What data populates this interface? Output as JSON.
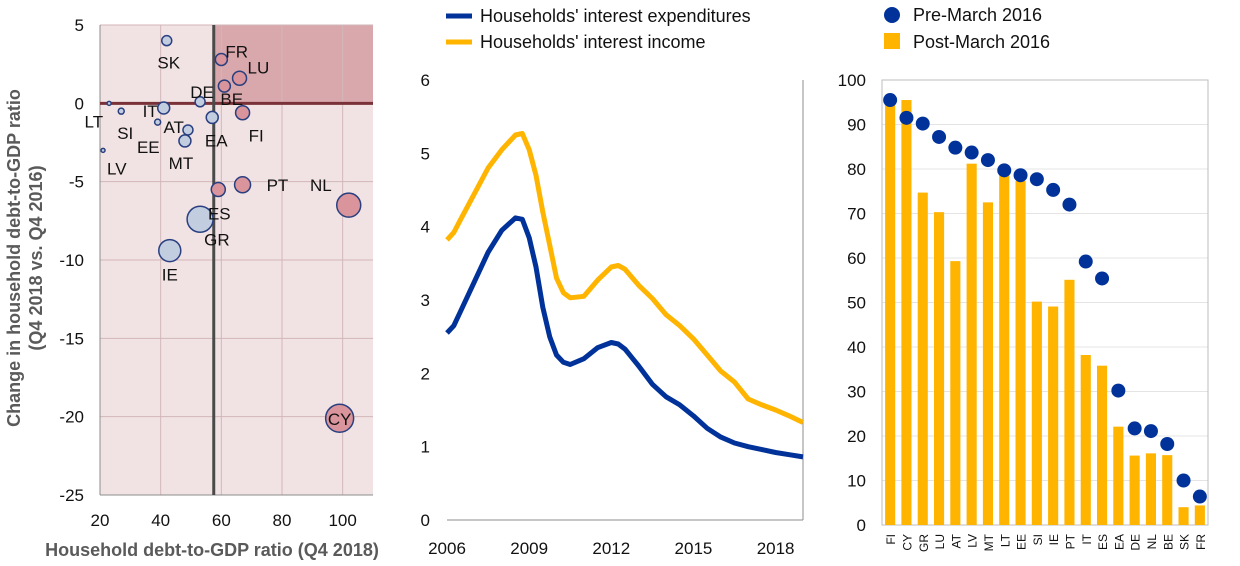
{
  "chart_data": [
    {
      "type": "scatter",
      "title": "",
      "xlabel": "Household debt-to-GDP ratio (Q4 2018)",
      "ylabel_line1": "Change in household debt-to-GDP ratio",
      "ylabel_line2": "(Q4 2018 vs. Q4 2016)",
      "xlim": [
        20,
        110
      ],
      "ylim": [
        -25,
        5
      ],
      "xticks": [
        "20",
        "40",
        "60",
        "80",
        "100"
      ],
      "yticks": [
        "5",
        "0",
        "-5",
        "-10",
        "-15",
        "-20",
        "-25"
      ],
      "reference_lines": {
        "x": 57.5,
        "y": 0
      },
      "shading_colors": {
        "upper_right": "#d9a8ad",
        "other": "#f1e3e4"
      },
      "bubble_colors": {
        "inside_shade": "#d9959b",
        "outside": "#c2cee0",
        "stroke": "#2a3f80"
      },
      "points": [
        {
          "label": "LT",
          "x": 23,
          "y": 0,
          "size": 2
        },
        {
          "label": "LV",
          "x": 21,
          "y": -3,
          "size": 2
        },
        {
          "label": "SI",
          "x": 27,
          "y": -0.5,
          "size": 3
        },
        {
          "label": "EE",
          "x": 39,
          "y": -1.2,
          "size": 3
        },
        {
          "label": "IT",
          "x": 41,
          "y": -0.3,
          "size": 6
        },
        {
          "label": "SK",
          "x": 42,
          "y": 4,
          "size": 5
        },
        {
          "label": "AT",
          "x": 49,
          "y": -1.7,
          "size": 5
        },
        {
          "label": "MT",
          "x": 48,
          "y": -2.4,
          "size": 6
        },
        {
          "label": "DE",
          "x": 53,
          "y": 0.1,
          "size": 5
        },
        {
          "label": "GR",
          "x": 53,
          "y": -7.4,
          "size": 13
        },
        {
          "label": "IE",
          "x": 43,
          "y": -9.4,
          "size": 11
        },
        {
          "label": "EA",
          "x": 57,
          "y": -0.9,
          "size": 6
        },
        {
          "label": "ES",
          "x": 59,
          "y": -5.5,
          "size": 7
        },
        {
          "label": "FR",
          "x": 60,
          "y": 2.8,
          "size": 6
        },
        {
          "label": "BE",
          "x": 61,
          "y": 1.1,
          "size": 6
        },
        {
          "label": "LU",
          "x": 66,
          "y": 1.6,
          "size": 7
        },
        {
          "label": "FI",
          "x": 67,
          "y": -0.6,
          "size": 7
        },
        {
          "label": "PT",
          "x": 67,
          "y": -5.2,
          "size": 8
        },
        {
          "label": "NL",
          "x": 102,
          "y": -6.5,
          "size": 12
        },
        {
          "label": "CY",
          "x": 99,
          "y": -20.1,
          "size": 14
        }
      ]
    },
    {
      "type": "line",
      "title": "",
      "xlim": [
        2006,
        2019
      ],
      "ylim": [
        0,
        6
      ],
      "xticks": [
        "2006",
        "2009",
        "2012",
        "2015",
        "2018"
      ],
      "yticks": [
        "0",
        "1",
        "2",
        "3",
        "4",
        "5",
        "6"
      ],
      "series": [
        {
          "name": "Households' interest expenditures",
          "color": "#003299",
          "points": [
            [
              2006,
              2.55
            ],
            [
              2006.25,
              2.65
            ],
            [
              2006.5,
              2.85
            ],
            [
              2007,
              3.25
            ],
            [
              2007.5,
              3.65
            ],
            [
              2008,
              3.95
            ],
            [
              2008.5,
              4.12
            ],
            [
              2008.75,
              4.1
            ],
            [
              2009,
              3.85
            ],
            [
              2009.25,
              3.45
            ],
            [
              2009.5,
              2.9
            ],
            [
              2009.75,
              2.5
            ],
            [
              2010,
              2.25
            ],
            [
              2010.25,
              2.15
            ],
            [
              2010.5,
              2.12
            ],
            [
              2011,
              2.2
            ],
            [
              2011.5,
              2.35
            ],
            [
              2012,
              2.42
            ],
            [
              2012.25,
              2.4
            ],
            [
              2012.5,
              2.33
            ],
            [
              2013,
              2.1
            ],
            [
              2013.5,
              1.85
            ],
            [
              2014,
              1.68
            ],
            [
              2014.5,
              1.57
            ],
            [
              2015,
              1.42
            ],
            [
              2015.5,
              1.25
            ],
            [
              2016,
              1.13
            ],
            [
              2016.5,
              1.05
            ],
            [
              2017,
              1.0
            ],
            [
              2017.5,
              0.96
            ],
            [
              2018,
              0.92
            ],
            [
              2018.5,
              0.89
            ],
            [
              2019,
              0.86
            ]
          ]
        },
        {
          "name": "Households' interest income",
          "color": "#ffb400",
          "points": [
            [
              2006,
              3.82
            ],
            [
              2006.25,
              3.92
            ],
            [
              2006.5,
              4.1
            ],
            [
              2007,
              4.45
            ],
            [
              2007.5,
              4.8
            ],
            [
              2008,
              5.05
            ],
            [
              2008.5,
              5.25
            ],
            [
              2008.75,
              5.27
            ],
            [
              2009,
              5.05
            ],
            [
              2009.25,
              4.7
            ],
            [
              2009.5,
              4.2
            ],
            [
              2009.75,
              3.75
            ],
            [
              2010,
              3.3
            ],
            [
              2010.25,
              3.1
            ],
            [
              2010.5,
              3.03
            ],
            [
              2011,
              3.05
            ],
            [
              2011.5,
              3.27
            ],
            [
              2012,
              3.45
            ],
            [
              2012.25,
              3.47
            ],
            [
              2012.5,
              3.42
            ],
            [
              2013,
              3.2
            ],
            [
              2013.5,
              3.02
            ],
            [
              2014,
              2.8
            ],
            [
              2014.5,
              2.65
            ],
            [
              2015,
              2.47
            ],
            [
              2015.5,
              2.25
            ],
            [
              2016,
              2.03
            ],
            [
              2016.5,
              1.88
            ],
            [
              2017,
              1.65
            ],
            [
              2017.5,
              1.57
            ],
            [
              2018,
              1.5
            ],
            [
              2018.5,
              1.42
            ],
            [
              2019,
              1.33
            ]
          ]
        }
      ]
    },
    {
      "type": "bar",
      "title": "",
      "ylim": [
        0,
        100
      ],
      "yticks": [
        "0",
        "10",
        "20",
        "30",
        "40",
        "50",
        "60",
        "70",
        "80",
        "90",
        "100"
      ],
      "categories": [
        "FI",
        "CY",
        "GR",
        "LU",
        "AT",
        "LV",
        "MT",
        "LT",
        "EE",
        "SI",
        "IE",
        "PT",
        "IT",
        "ES",
        "EA",
        "DE",
        "NL",
        "BE",
        "SK",
        "FR"
      ],
      "series": [
        {
          "name": "Pre-March 2016",
          "kind": "marker",
          "color": "#003299",
          "values": [
            95.5,
            91.5,
            90.2,
            87.2,
            84.8,
            83.7,
            82.0,
            79.7,
            78.6,
            77.7,
            75.3,
            72.0,
            59.2,
            55.4,
            30.2,
            21.7,
            21.1,
            18.2,
            10.0,
            6.4
          ]
        },
        {
          "name": "Post-March 2016",
          "kind": "bar",
          "color": "#ffb400",
          "values": [
            95.0,
            95.5,
            74.7,
            70.3,
            59.3,
            81.2,
            72.5,
            78.8,
            77.3,
            50.2,
            49.1,
            55.1,
            38.2,
            35.8,
            22.1,
            15.6,
            16.1,
            15.7,
            4.0,
            4.4
          ]
        }
      ]
    }
  ]
}
